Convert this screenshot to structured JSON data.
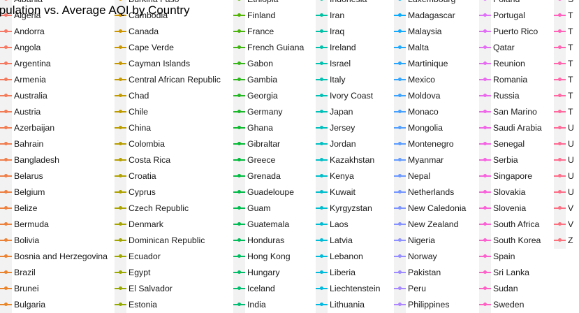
{
  "chart_data": {
    "type": "line",
    "title": "Population vs. Average AQI by Country",
    "legend_placement": "right",
    "legend_columns": [
      {
        "color": "#F8766D",
        "entries": [
          "Albania",
          "Algeria",
          "Andorra",
          "Angola",
          "Argentina",
          "Armenia",
          "Australia",
          "Austria",
          "Azerbaijan",
          "Bahrain",
          "Bangladesh",
          "Belarus",
          "Belgium",
          "Belize",
          "Bermuda",
          "Bolivia",
          "Bosnia and Herzegovina",
          "Brazil",
          "Brunei",
          "Bulgaria"
        ]
      },
      {
        "color": "#A3A500",
        "entries": [
          "Burkina Faso",
          "Cambodia",
          "Canada",
          "Cape Verde",
          "Cayman Islands",
          "Central African Republic",
          "Chad",
          "Chile",
          "China",
          "Colombia",
          "Costa Rica",
          "Croatia",
          "Cyprus",
          "Czech Republic",
          "Denmark",
          "Dominican Republic",
          "Ecuador",
          "Egypt",
          "El Salvador",
          "Estonia"
        ]
      },
      {
        "color": "#39B600",
        "entries": [
          "Ethiopia",
          "Finland",
          "France",
          "French Guiana",
          "Gabon",
          "Gambia",
          "Georgia",
          "Germany",
          "Ghana",
          "Gibraltar",
          "Greece",
          "Grenada",
          "Guadeloupe",
          "Guam",
          "Guatemala",
          "Honduras",
          "Hong Kong",
          "Hungary",
          "Iceland",
          "India"
        ]
      },
      {
        "color": "#00BFC4",
        "entries": [
          "Indonesia",
          "Iran",
          "Iraq",
          "Ireland",
          "Israel",
          "Italy",
          "Ivory Coast",
          "Japan",
          "Jersey",
          "Jordan",
          "Kazakhstan",
          "Kenya",
          "Kuwait",
          "Kyrgyzstan",
          "Laos",
          "Latvia",
          "Lebanon",
          "Liberia",
          "Liechtenstein",
          "Lithuania"
        ]
      },
      {
        "color": "#00B0F6",
        "entries": [
          "Luxembourg",
          "Madagascar",
          "Malaysia",
          "Malta",
          "Martinique",
          "Mexico",
          "Moldova",
          "Monaco",
          "Mongolia",
          "Montenegro",
          "Myanmar",
          "Nepal",
          "Netherlands",
          "New Caledonia",
          "New Zealand",
          "Nigeria",
          "Norway",
          "Pakistan",
          "Peru",
          "Philippines"
        ]
      },
      {
        "color": "#E76BF3",
        "entries": [
          "Poland",
          "Portugal",
          "Puerto Rico",
          "Qatar",
          "Reunion",
          "Romania",
          "Russia",
          "San Marino",
          "Saudi Arabia",
          "Senegal",
          "Serbia",
          "Singapore",
          "Slovakia",
          "Slovenia",
          "South Africa",
          "South Korea",
          "Spain",
          "Sri Lanka",
          "Sudan",
          "Sweden"
        ]
      },
      {
        "color": "#FF62BC",
        "entries": [
          "S",
          "T",
          "T",
          "T",
          "T",
          "T",
          "T",
          "T",
          "U",
          "U",
          "U",
          "U",
          "U",
          "V",
          "V",
          "Z"
        ]
      }
    ]
  }
}
